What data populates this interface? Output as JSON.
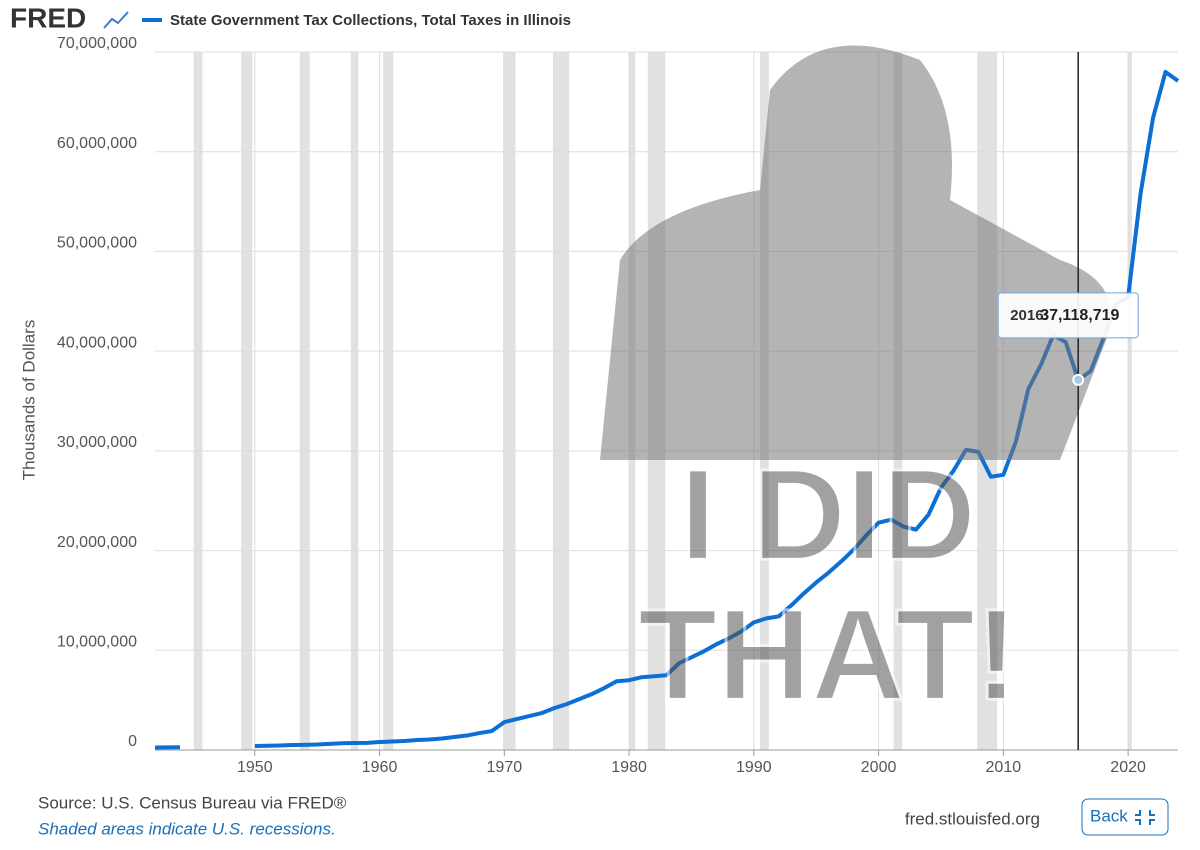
{
  "chart_data": {
    "type": "line",
    "logo": "FRED",
    "title": "State Government Tax Collections, Total Taxes in Illinois",
    "y_label": "Thousands of Dollars",
    "x": [
      1942,
      1943,
      1944,
      1945,
      1946,
      1947,
      1948,
      1949,
      1950,
      1951,
      1952,
      1953,
      1954,
      1955,
      1956,
      1957,
      1958,
      1959,
      1960,
      1961,
      1962,
      1963,
      1964,
      1965,
      1966,
      1967,
      1968,
      1969,
      1970,
      1971,
      1972,
      1973,
      1974,
      1975,
      1976,
      1977,
      1978,
      1979,
      1980,
      1981,
      1982,
      1983,
      1984,
      1985,
      1986,
      1987,
      1988,
      1989,
      1990,
      1991,
      1992,
      1993,
      1994,
      1995,
      1996,
      1997,
      1998,
      1999,
      2000,
      2001,
      2002,
      2003,
      2004,
      2005,
      2006,
      2007,
      2008,
      2009,
      2010,
      2011,
      2012,
      2013,
      2014,
      2015,
      2016,
      2017,
      2018,
      2019,
      2020,
      2021,
      2022,
      2023,
      2024
    ],
    "series": [
      {
        "name": "State Government Tax Collections, Total Taxes in Illinois",
        "color": "#0b6fd6",
        "values": [
          250000,
          260000,
          270000,
          null,
          null,
          null,
          null,
          null,
          400000,
          420000,
          450000,
          500000,
          520000,
          550000,
          620000,
          680000,
          700000,
          720000,
          800000,
          850000,
          900000,
          1000000,
          1050000,
          1150000,
          1300000,
          1450000,
          1700000,
          1900000,
          2800000,
          3100000,
          3400000,
          3700000,
          4200000,
          4600000,
          5100000,
          5600000,
          6200000,
          6900000,
          7000000,
          7300000,
          7400000,
          7500000,
          8700000,
          9300000,
          9900000,
          10600000,
          11200000,
          11900000,
          12800000,
          13200000,
          13400000,
          14500000,
          15700000,
          16800000,
          17800000,
          18900000,
          20100000,
          21500000,
          22800000,
          23100000,
          22400000,
          22100000,
          23600000,
          26300000,
          28000000,
          30100000,
          29900000,
          27400000,
          27600000,
          30900000,
          36200000,
          38600000,
          41600000,
          40900000,
          37118719,
          38000000,
          41200000,
          44700000,
          45400000,
          55800000,
          63400000,
          68000000,
          67100000
        ]
      }
    ],
    "xlim": [
      1942,
      2024
    ],
    "xticks": [
      1950,
      1960,
      1970,
      1980,
      1990,
      2000,
      2010,
      2020
    ],
    "ylim": [
      0,
      70000000
    ],
    "yticks": [
      0,
      {
        "value": 10000000,
        "label": "10,000,000"
      },
      {
        "value": 20000000,
        "label": "20,000,000"
      },
      {
        "value": 30000000,
        "label": "30,000,000"
      },
      {
        "value": 40000000,
        "label": "40,000,000"
      },
      {
        "value": 50000000,
        "label": "50,000,000"
      },
      {
        "value": 60000000,
        "label": "60,000,000"
      },
      {
        "value": 70000000,
        "label": "70,000,000"
      }
    ],
    "grid": true,
    "recessions": [
      [
        1945.1,
        1945.8
      ],
      [
        1948.9,
        1949.8
      ],
      [
        1953.6,
        1954.4
      ],
      [
        1957.7,
        1958.3
      ],
      [
        1960.3,
        1961.1
      ],
      [
        1969.9,
        1970.9
      ],
      [
        1973.9,
        1975.2
      ],
      [
        1980.0,
        1980.5
      ],
      [
        1981.5,
        1982.9
      ],
      [
        1990.5,
        1991.2
      ],
      [
        2001.2,
        2001.9
      ],
      [
        2007.9,
        2009.5
      ],
      [
        2020.0,
        2020.3
      ]
    ],
    "tooltip": {
      "x": 2016,
      "x_label": "2016:",
      "value": 37118719,
      "value_label": "37,118,719"
    },
    "overlay": [
      "I DID",
      "THAT!"
    ],
    "source": "Source: U.S. Census Bureau via FRED®",
    "note": "Shaded areas indicate U.S. recessions.",
    "site": "fred.stlouisfed.org",
    "button": "Back"
  }
}
